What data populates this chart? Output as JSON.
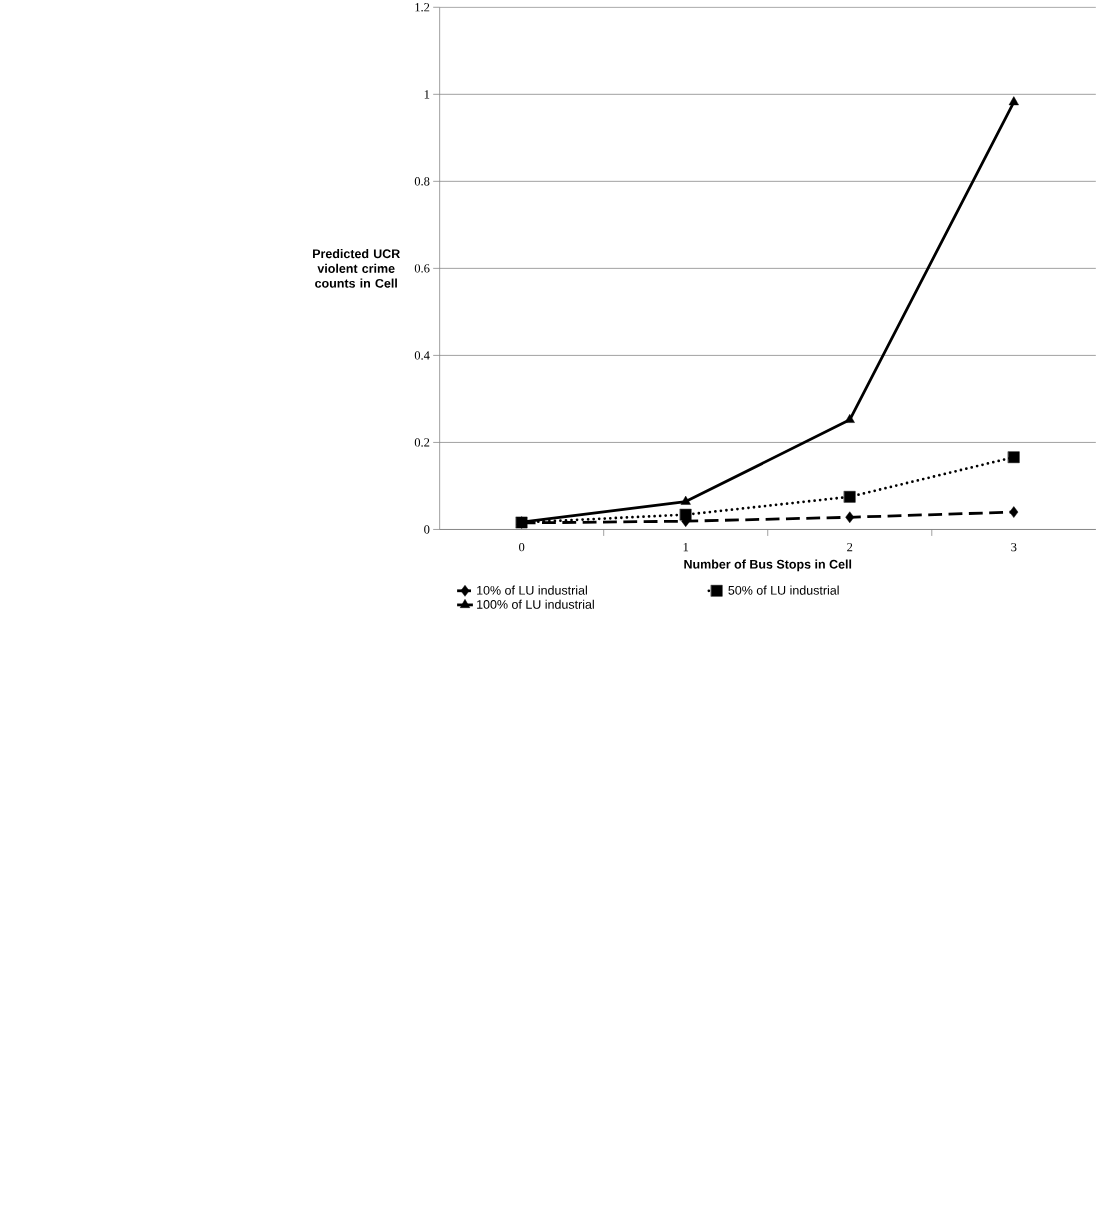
{
  "chart_data": {
    "type": "line",
    "xlabel": "Number of Bus Stops in Cell",
    "ylabel": "Predicted UCR violent crime counts in Cell",
    "categories": [
      "0",
      "1",
      "2",
      "3"
    ],
    "series": [
      {
        "name": "10% of LU industrial",
        "color": "#000000",
        "marker": "diamond",
        "line_style": "dashed",
        "values": [
          0.015,
          0.019,
          0.028,
          0.04
        ]
      },
      {
        "name": "50% of LU industrial",
        "color": "#000000",
        "marker": "square",
        "line_style": "dotted",
        "values": [
          0.016,
          0.034,
          0.075,
          0.166
        ]
      },
      {
        "name": "100% of LU industrial",
        "color": "#000000",
        "marker": "triangle",
        "line_style": "solid",
        "values": [
          0.017,
          0.064,
          0.252,
          0.982
        ]
      }
    ],
    "ylim": [
      0,
      1.2
    ],
    "yticks": [
      0,
      0.2,
      0.4,
      0.6,
      0.8,
      1,
      1.2
    ],
    "grid": "y",
    "legend": "bottom"
  }
}
